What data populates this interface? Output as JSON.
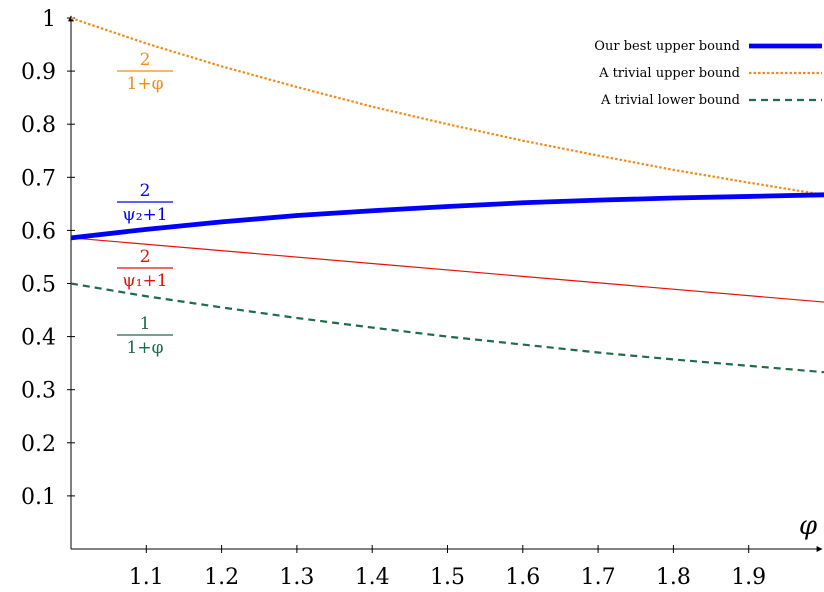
{
  "chart_data": {
    "type": "line",
    "title": "",
    "xlabel": "φ",
    "ylabel": "",
    "xlim": [
      1.0,
      2.0
    ],
    "ylim": [
      0.0,
      1.0
    ],
    "x_ticks": [
      "1.1",
      "1.2",
      "1.3",
      "1.4",
      "1.5",
      "1.6",
      "1.7",
      "1.8",
      "1.9"
    ],
    "y_ticks": [
      "0.1",
      "0.2",
      "0.3",
      "0.4",
      "0.5",
      "0.6",
      "0.7",
      "0.8",
      "0.9",
      "1"
    ],
    "grid": false,
    "legend_position": "top-right",
    "series": [
      {
        "name": "Our best upper bound",
        "label_num": "2",
        "label_den": "ψ₂+1",
        "color": "#0000ff",
        "style": "solid-thick",
        "x": [
          1.0,
          1.1,
          1.2,
          1.3,
          1.4,
          1.5,
          1.6,
          1.7,
          1.8,
          1.9,
          2.0
        ],
        "y": [
          0.586,
          0.602,
          0.616,
          0.628,
          0.637,
          0.645,
          0.652,
          0.657,
          0.661,
          0.664,
          0.667
        ]
      },
      {
        "name": "A trivial upper bound",
        "label_num": "2",
        "label_den": "1+φ",
        "color": "#f28c1e",
        "style": "dotted",
        "x": [
          1.0,
          1.1,
          1.2,
          1.3,
          1.4,
          1.5,
          1.6,
          1.7,
          1.8,
          1.9,
          2.0
        ],
        "y": [
          1.0,
          0.952,
          0.909,
          0.87,
          0.833,
          0.8,
          0.769,
          0.741,
          0.714,
          0.69,
          0.667
        ]
      },
      {
        "name": "A trivial lower bound",
        "label_num": "1",
        "label_den": "1+φ",
        "color": "#1f6b4c",
        "style": "dashed",
        "x": [
          1.0,
          1.1,
          1.2,
          1.3,
          1.4,
          1.5,
          1.6,
          1.7,
          1.8,
          1.9,
          2.0
        ],
        "y": [
          0.5,
          0.476,
          0.455,
          0.435,
          0.417,
          0.4,
          0.385,
          0.37,
          0.357,
          0.345,
          0.333
        ]
      },
      {
        "label_num": "2",
        "label_den": "ψ₁+1",
        "color": "#e3120b",
        "style": "solid-thin",
        "x": [
          1.0,
          2.0
        ],
        "y": [
          0.586,
          0.465
        ]
      }
    ]
  }
}
